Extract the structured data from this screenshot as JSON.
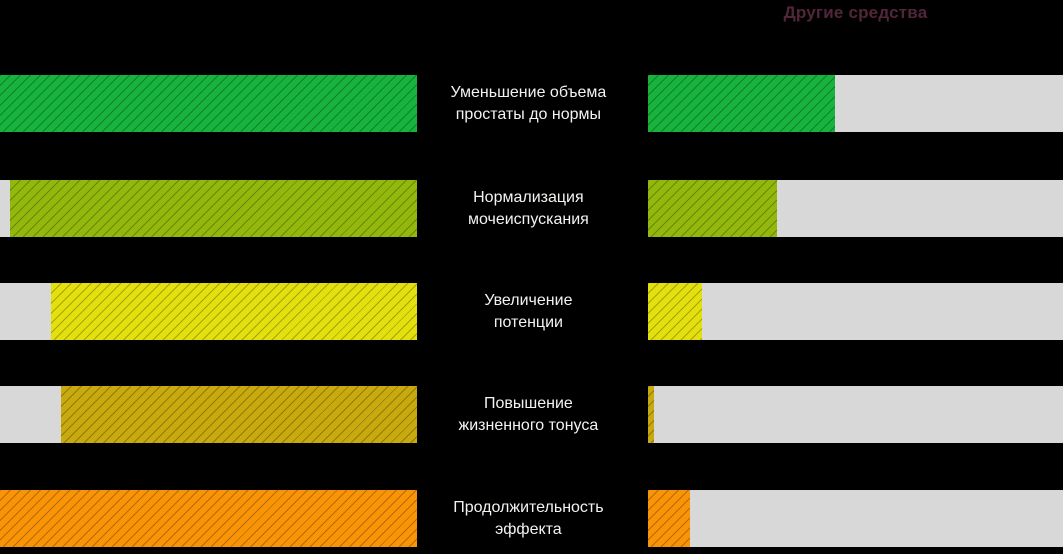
{
  "header": {
    "right_title": "Другие средства"
  },
  "colors": {
    "background": "#000000",
    "track": "#d8d8d8",
    "title_text": "#522639",
    "label_text": "#f5f3f0"
  },
  "chart_data": {
    "type": "bar",
    "orientation": "horizontal",
    "title_right_column": "Другие средства",
    "unit": "%",
    "xlim": [
      0,
      100
    ],
    "grid": false,
    "categories": [
      "Уменьшение объема простаты до нормы",
      "Нормализация мочеиспускания",
      "Увеличение потенции",
      "Повышение жизненного тонуса",
      "Продолжительность эффекта"
    ],
    "series": [
      {
        "name": "",
        "position": "left-column",
        "values": [
          100,
          98,
          88,
          85,
          100
        ]
      },
      {
        "name": "Другие средства",
        "position": "right-column",
        "values": [
          45,
          31,
          13,
          1.5,
          10
        ]
      }
    ]
  },
  "rows": [
    {
      "label": "Уменьшение объема\nпростаты до нормы",
      "left_value": 100,
      "right_value": 45,
      "color": "#17b33c"
    },
    {
      "label": "Нормализация\nмочеиспускания",
      "left_value": 97.6,
      "right_value": 31,
      "color": "#93b80c"
    },
    {
      "label": "Увеличение\nпотенции",
      "left_value": 87.7,
      "right_value": 13,
      "color": "#e4e00d"
    },
    {
      "label": "Повышение\nжизненного тонуса",
      "left_value": 85.3,
      "right_value": 1.5,
      "color": "#c8a90e"
    },
    {
      "label": "Продолжительность\nэффекта",
      "left_value": 100,
      "right_value": 10,
      "color": "#f89406"
    }
  ]
}
